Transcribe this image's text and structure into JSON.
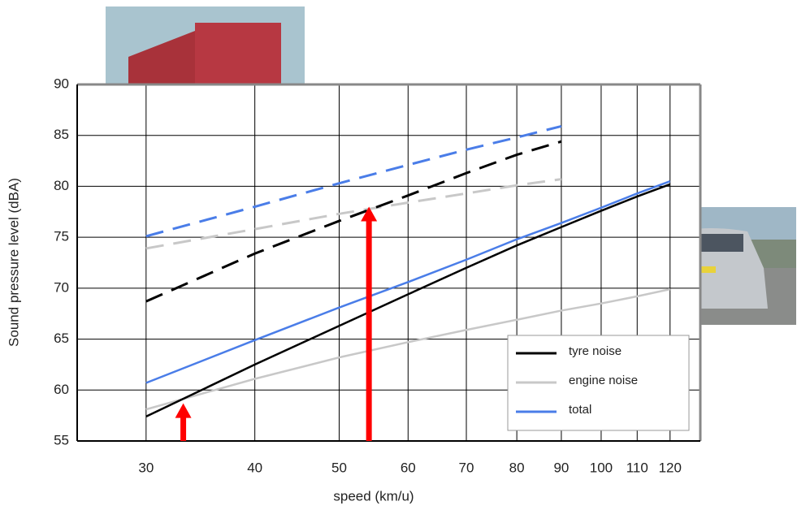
{
  "chart_data": {
    "type": "line",
    "x_label": "speed (km/u)",
    "y_label": "Sound pressure level (dBA)",
    "x": [
      30,
      40,
      50,
      60,
      70,
      80,
      90,
      100,
      110,
      120
    ],
    "xlim": [
      25,
      130
    ],
    "xticks": [
      30,
      40,
      50,
      60,
      70,
      80,
      90,
      100,
      110,
      120
    ],
    "xscale": "log",
    "ylim": [
      55,
      90
    ],
    "yticks": [
      55,
      60,
      65,
      70,
      75,
      80,
      85,
      90
    ],
    "grid": true,
    "series": [
      {
        "name": "tyre noise",
        "color": "#000000",
        "values": [
          57.4,
          62.5,
          66.3,
          69.4,
          72.0,
          74.2,
          76.0,
          77.6,
          79.0,
          80.2
        ]
      },
      {
        "name": "engine noise",
        "color": "#c8c8c8",
        "values": [
          58.1,
          61.1,
          63.2,
          64.7,
          65.9,
          66.9,
          67.8,
          68.5,
          69.2,
          69.9
        ]
      },
      {
        "name": "total",
        "color": "#4a7de8",
        "values": [
          60.7,
          64.9,
          68.1,
          70.6,
          72.8,
          74.8,
          76.4,
          77.9,
          79.3,
          80.5
        ]
      },
      {
        "color": "#000000",
        "dashed": true,
        "values": [
          68.7,
          73.4,
          76.6,
          79.1,
          81.3,
          83.1,
          84.4,
          null,
          null,
          null
        ]
      },
      {
        "color": "#c8c8c8",
        "dashed": true,
        "values": [
          73.9,
          75.8,
          77.3,
          78.4,
          79.3,
          80.1,
          80.7,
          null,
          null,
          null
        ]
      },
      {
        "color": "#4a7de8",
        "dashed": true,
        "values": [
          75.1,
          78.0,
          80.3,
          82.1,
          83.6,
          84.8,
          85.9,
          null,
          null,
          null
        ]
      }
    ],
    "arrows": [
      {
        "x": 33.1,
        "y": 58.7,
        "color": "#ff0000"
      },
      {
        "x": 54.1,
        "y": 78.0,
        "color": "#ff0000"
      }
    ]
  }
}
